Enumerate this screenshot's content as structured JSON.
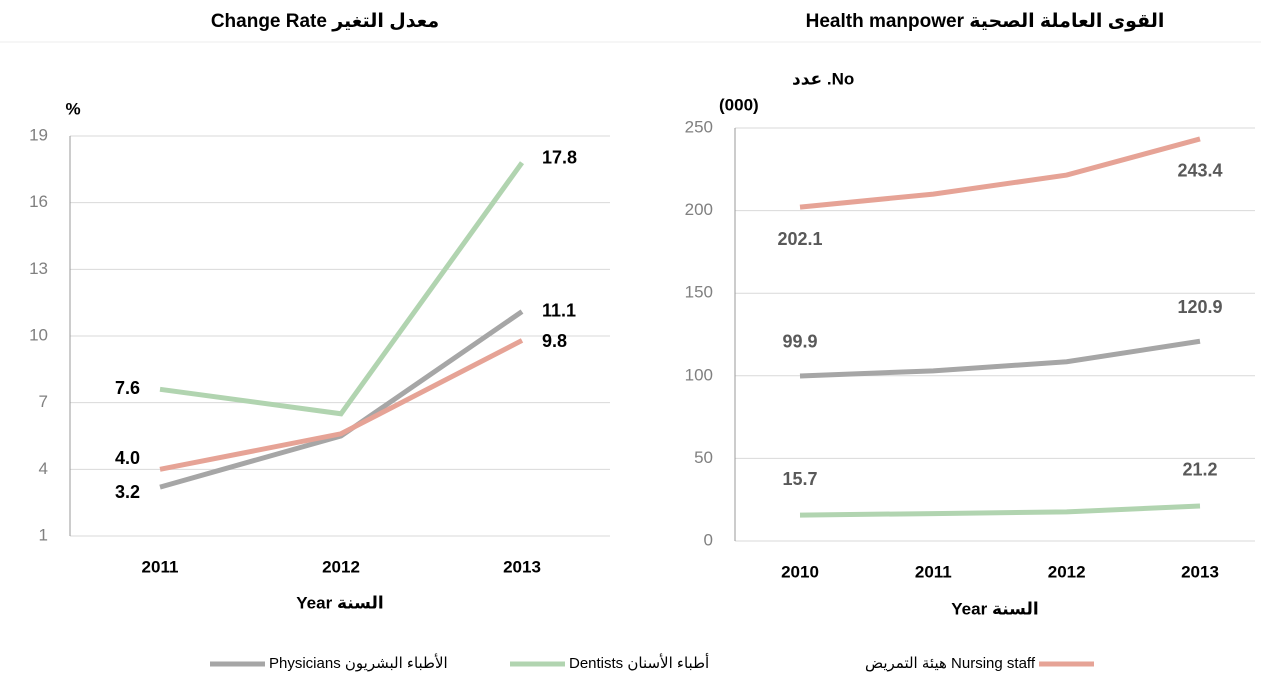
{
  "chart_data": [
    {
      "type": "line",
      "title": "Change Rate معدل التغير",
      "y_label": "%",
      "x_label": "Year السنة",
      "categories": [
        "2011",
        "2012",
        "2013"
      ],
      "ylim": [
        1,
        19
      ],
      "yticks": [
        1,
        4,
        7,
        10,
        13,
        16,
        19
      ],
      "grid": true,
      "series": [
        {
          "name": "Physicians الأطباء البشريون",
          "color": "#a6a6a6",
          "values": [
            3.2,
            5.5,
            11.1
          ],
          "value_labels": [
            "3.2",
            null,
            "11.1"
          ]
        },
        {
          "name": "Dentists أطباء الأسنان",
          "color": "#b1d4b0",
          "values": [
            7.6,
            6.5,
            17.8
          ],
          "value_labels": [
            "7.6",
            null,
            "17.8"
          ]
        },
        {
          "name": "هيئة التمريض Nursing staff",
          "color": "#e6a396",
          "values": [
            4.0,
            5.6,
            9.8
          ],
          "value_labels": [
            "4.0",
            null,
            "9.8"
          ]
        }
      ]
    },
    {
      "type": "line",
      "title": "Health manpower القوى العاملة الصحية",
      "y_label": [
        "No. عدد",
        "(000)"
      ],
      "x_label": "Year السنة",
      "categories": [
        "2010",
        "2011",
        "2012",
        "2013"
      ],
      "ylim": [
        0,
        250
      ],
      "yticks": [
        0,
        50,
        100,
        150,
        200,
        250
      ],
      "grid": true,
      "series": [
        {
          "name": "Physicians الأطباء البشريون",
          "color": "#a6a6a6",
          "values": [
            99.9,
            103,
            108.5,
            120.9
          ],
          "value_labels": [
            "99.9",
            null,
            null,
            "120.9"
          ]
        },
        {
          "name": "Dentists أطباء الأسنان",
          "color": "#b1d4b0",
          "values": [
            15.7,
            16.6,
            17.6,
            21.2
          ],
          "value_labels": [
            "15.7",
            null,
            null,
            "21.2"
          ]
        },
        {
          "name": "هيئة التمريض Nursing staff",
          "color": "#e6a396",
          "values": [
            202.1,
            210,
            221.5,
            243.4
          ],
          "value_labels": [
            "202.1",
            null,
            null,
            "243.4"
          ]
        }
      ]
    }
  ]
}
